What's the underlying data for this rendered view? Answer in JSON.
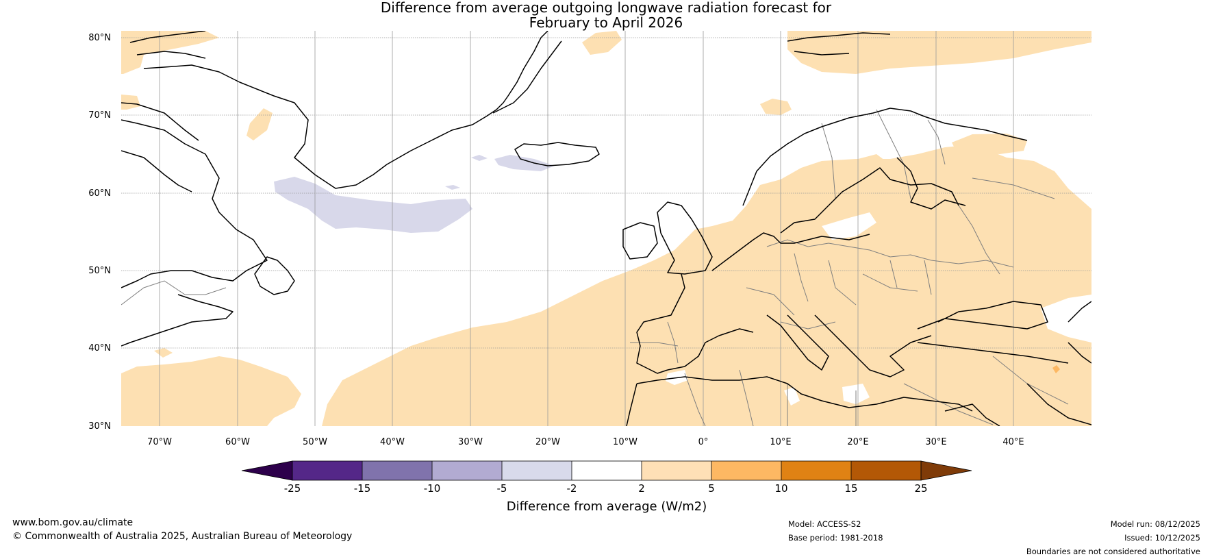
{
  "title": {
    "line1": "Difference from average outgoing longwave radiation forecast for",
    "line2": "February to April 2026"
  },
  "map": {
    "projection": "equirectangular",
    "lon_range": [
      -75,
      50
    ],
    "lat_range": [
      30,
      81
    ],
    "lat_ticks": [
      "80°N",
      "70°N",
      "60°N",
      "50°N",
      "40°N",
      "30°N"
    ],
    "lon_ticks": [
      "70°W",
      "60°W",
      "50°W",
      "40°W",
      "30°W",
      "20°W",
      "10°W",
      "0°",
      "10°E",
      "20°E",
      "30°E",
      "40°E"
    ],
    "colors": {
      "land_anomaly": "#fde0b2",
      "negative_anomaly": "#d8d8ea",
      "coast": "#000000",
      "border": "#7f7f7f",
      "grid": "#999999",
      "small_positive": "#fdb863"
    }
  },
  "colorbar": {
    "title": "Difference from average (W/m2)",
    "tick_labels": [
      "-25",
      "-15",
      "-10",
      "-5",
      "-2",
      "2",
      "5",
      "10",
      "15",
      "25"
    ],
    "colors": [
      "#2d004b",
      "#542788",
      "#8073ac",
      "#b2abd2",
      "#d8daeb",
      "#ffffff",
      "#fee0b6",
      "#fdb863",
      "#e08214",
      "#b35806",
      "#7f3b08"
    ]
  },
  "footer": {
    "website": "www.bom.gov.au/climate",
    "copyright": "© Commonwealth of Australia 2025, Australian Bureau of Meteorology",
    "model": "Model: ACCESS-S2",
    "base_period": "Base period: 1981-2018",
    "model_run": "Model run: 08/12/2025",
    "issued": "Issued: 10/12/2025",
    "disclaimer": "Boundaries are not considered authoritative"
  }
}
